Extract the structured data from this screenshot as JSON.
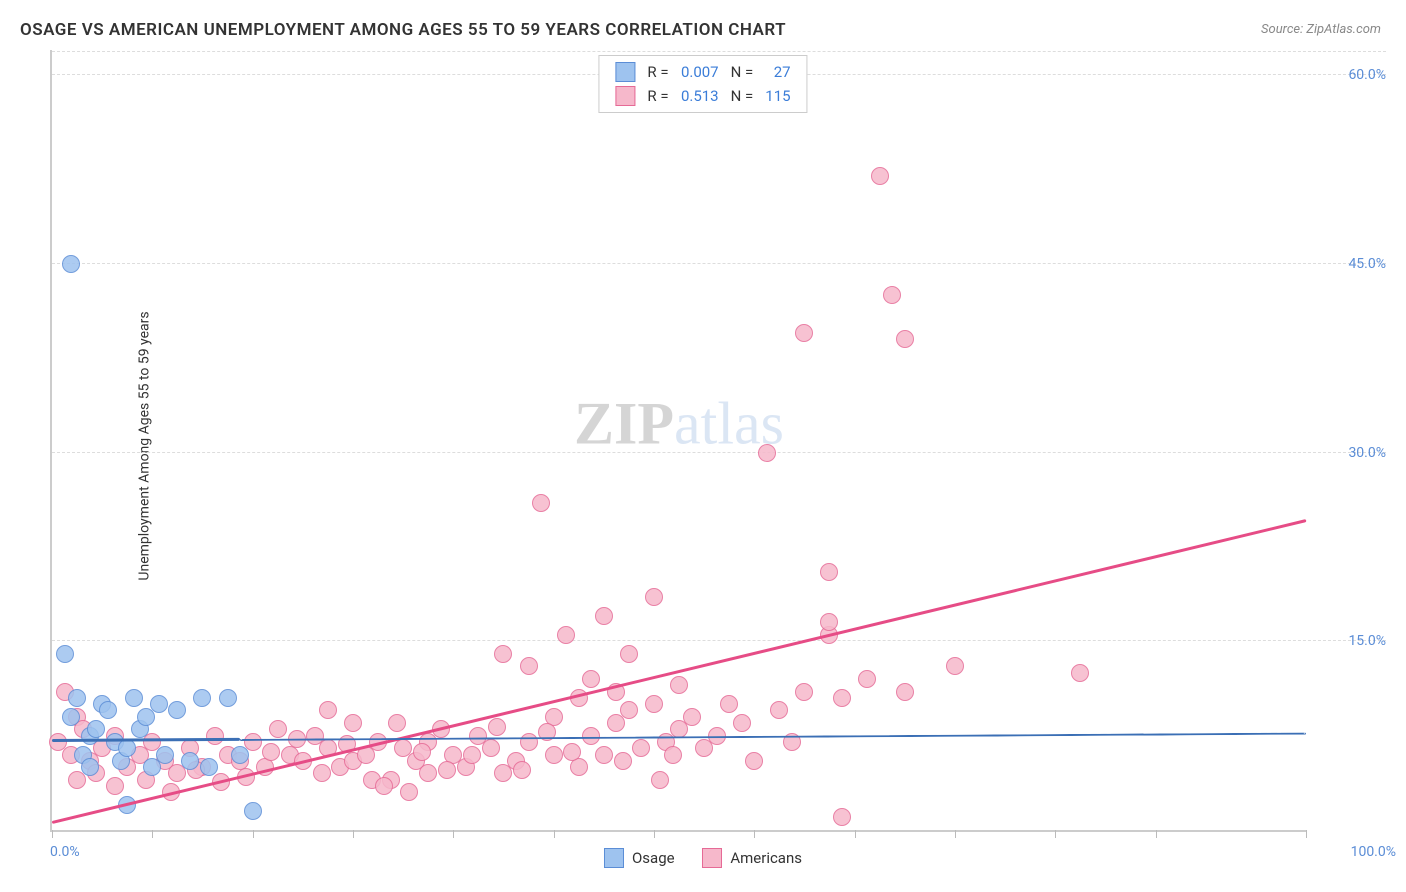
{
  "title": "OSAGE VS AMERICAN UNEMPLOYMENT AMONG AGES 55 TO 59 YEARS CORRELATION CHART",
  "source": "Source: ZipAtlas.com",
  "ylabel": "Unemployment Among Ages 55 to 59 years",
  "watermark": {
    "part1": "ZIP",
    "part2": "atlas"
  },
  "chart": {
    "type": "scatter",
    "background_color": "#ffffff",
    "grid_color": "#dddddd",
    "axis_color": "#cccccc",
    "title_fontsize": 17,
    "label_fontsize": 14,
    "tick_color": "#5b8dd6",
    "xlim": [
      0,
      100
    ],
    "ylim": [
      0,
      62
    ],
    "xticks": [
      0,
      8,
      16,
      24,
      32,
      40,
      48,
      56,
      64,
      72,
      80,
      88,
      100
    ],
    "xlabel_min": "0.0%",
    "xlabel_max": "100.0%",
    "yticks": [
      {
        "v": 15,
        "label": "15.0%"
      },
      {
        "v": 30,
        "label": "30.0%"
      },
      {
        "v": 45,
        "label": "45.0%"
      },
      {
        "v": 60,
        "label": "60.0%"
      }
    ],
    "marker_radius": 9,
    "marker_border_width": 1,
    "marker_fill_opacity": 0.35
  },
  "series": {
    "osage": {
      "label": "Osage",
      "R": "0.007",
      "N": "27",
      "color_fill": "#9ec3ef",
      "color_border": "#5b8dd6",
      "reg_color": "#3b6fb5",
      "reg_solid_until_x": 15,
      "reg_y_at_x0": 7.0,
      "reg_y_at_x100": 7.6,
      "points": [
        [
          1.5,
          45.0
        ],
        [
          1.0,
          14.0
        ],
        [
          2.0,
          10.5
        ],
        [
          1.5,
          9.0
        ],
        [
          2.5,
          6.0
        ],
        [
          3.0,
          7.5
        ],
        [
          3.5,
          8.0
        ],
        [
          4.0,
          10.0
        ],
        [
          3.0,
          5.0
        ],
        [
          4.5,
          9.5
        ],
        [
          5.0,
          7.0
        ],
        [
          5.5,
          5.5
        ],
        [
          6.0,
          6.5
        ],
        [
          6.5,
          10.5
        ],
        [
          7.0,
          8.0
        ],
        [
          7.5,
          9.0
        ],
        [
          8.0,
          5.0
        ],
        [
          8.5,
          10.0
        ],
        [
          9.0,
          6.0
        ],
        [
          10.0,
          9.5
        ],
        [
          11.0,
          5.5
        ],
        [
          12.0,
          10.5
        ],
        [
          12.5,
          5.0
        ],
        [
          14.0,
          10.5
        ],
        [
          15.0,
          6.0
        ],
        [
          16.0,
          1.5
        ],
        [
          6.0,
          2.0
        ]
      ]
    },
    "americans": {
      "label": "Americans",
      "R": "0.513",
      "N": "115",
      "color_fill": "#f6b8cb",
      "color_border": "#e66a96",
      "reg_color": "#e64c86",
      "reg_y_at_x0": 0.5,
      "reg_y_at_x100": 24.5,
      "points": [
        [
          1.0,
          11.0
        ],
        [
          2.0,
          9.0
        ],
        [
          0.5,
          7.0
        ],
        [
          1.5,
          6.0
        ],
        [
          2.5,
          8.0
        ],
        [
          3.0,
          5.5
        ],
        [
          4.0,
          6.5
        ],
        [
          5.0,
          7.5
        ],
        [
          6.0,
          5.0
        ],
        [
          7.0,
          6.0
        ],
        [
          8.0,
          7.0
        ],
        [
          9.0,
          5.5
        ],
        [
          10.0,
          4.5
        ],
        [
          11.0,
          6.5
        ],
        [
          12.0,
          5.0
        ],
        [
          13.0,
          7.5
        ],
        [
          14.0,
          6.0
        ],
        [
          15.0,
          5.5
        ],
        [
          16.0,
          7.0
        ],
        [
          17.0,
          5.0
        ],
        [
          18.0,
          8.0
        ],
        [
          19.0,
          6.0
        ],
        [
          20.0,
          5.5
        ],
        [
          21.0,
          7.5
        ],
        [
          22.0,
          6.5
        ],
        [
          22.0,
          9.5
        ],
        [
          23.0,
          5.0
        ],
        [
          24.0,
          5.5
        ],
        [
          24.0,
          8.5
        ],
        [
          25.0,
          6.0
        ],
        [
          26.0,
          7.0
        ],
        [
          27.0,
          4.0
        ],
        [
          28.0,
          6.5
        ],
        [
          29.0,
          5.5
        ],
        [
          30.0,
          7.0
        ],
        [
          30.0,
          4.5
        ],
        [
          31.0,
          8.0
        ],
        [
          32.0,
          6.0
        ],
        [
          33.0,
          5.0
        ],
        [
          34.0,
          7.5
        ],
        [
          35.0,
          6.5
        ],
        [
          36.0,
          4.5
        ],
        [
          36.0,
          14.0
        ],
        [
          37.0,
          5.5
        ],
        [
          38.0,
          13.0
        ],
        [
          38.0,
          7.0
        ],
        [
          39.0,
          26.0
        ],
        [
          40.0,
          6.0
        ],
        [
          40.0,
          9.0
        ],
        [
          41.0,
          15.5
        ],
        [
          42.0,
          10.5
        ],
        [
          42.0,
          5.0
        ],
        [
          43.0,
          7.5
        ],
        [
          43.0,
          12.0
        ],
        [
          44.0,
          17.0
        ],
        [
          44.0,
          6.0
        ],
        [
          45.0,
          11.0
        ],
        [
          45.0,
          8.5
        ],
        [
          46.0,
          9.5
        ],
        [
          46.0,
          14.0
        ],
        [
          47.0,
          6.5
        ],
        [
          48.0,
          18.5
        ],
        [
          48.0,
          10.0
        ],
        [
          49.0,
          7.0
        ],
        [
          50.0,
          11.5
        ],
        [
          50.0,
          8.0
        ],
        [
          52.0,
          6.5
        ],
        [
          54.0,
          10.0
        ],
        [
          55.0,
          8.5
        ],
        [
          57.0,
          30.0
        ],
        [
          58.0,
          9.5
        ],
        [
          60.0,
          39.5
        ],
        [
          60.0,
          11.0
        ],
        [
          62.0,
          20.5
        ],
        [
          62.0,
          15.5
        ],
        [
          62.0,
          16.5
        ],
        [
          63.0,
          10.5
        ],
        [
          65.0,
          12.0
        ],
        [
          63.0,
          1.0
        ],
        [
          66.0,
          52.0
        ],
        [
          67.0,
          42.5
        ],
        [
          68.0,
          39.0
        ],
        [
          68.0,
          11.0
        ],
        [
          72.0,
          13.0
        ],
        [
          82.0,
          12.5
        ],
        [
          2.0,
          4.0
        ],
        [
          3.5,
          4.5
        ],
        [
          5.0,
          3.5
        ],
        [
          7.5,
          4.0
        ],
        [
          9.5,
          3.0
        ],
        [
          11.5,
          4.8
        ],
        [
          13.5,
          3.8
        ],
        [
          15.5,
          4.2
        ],
        [
          17.5,
          6.2
        ],
        [
          19.5,
          7.2
        ],
        [
          21.5,
          4.5
        ],
        [
          23.5,
          6.8
        ],
        [
          25.5,
          4.0
        ],
        [
          27.5,
          8.5
        ],
        [
          29.5,
          6.2
        ],
        [
          31.5,
          4.8
        ],
        [
          33.5,
          6.0
        ],
        [
          35.5,
          8.2
        ],
        [
          37.5,
          4.8
        ],
        [
          39.5,
          7.8
        ],
        [
          41.5,
          6.2
        ],
        [
          45.5,
          5.5
        ],
        [
          49.5,
          6.0
        ],
        [
          53.0,
          7.5
        ],
        [
          56.0,
          5.5
        ],
        [
          59.0,
          7.0
        ],
        [
          48.5,
          4.0
        ],
        [
          51.0,
          9.0
        ],
        [
          26.5,
          3.5
        ],
        [
          28.5,
          3.0
        ]
      ]
    }
  },
  "legend": {
    "R_label": "R =",
    "N_label": "N ="
  }
}
